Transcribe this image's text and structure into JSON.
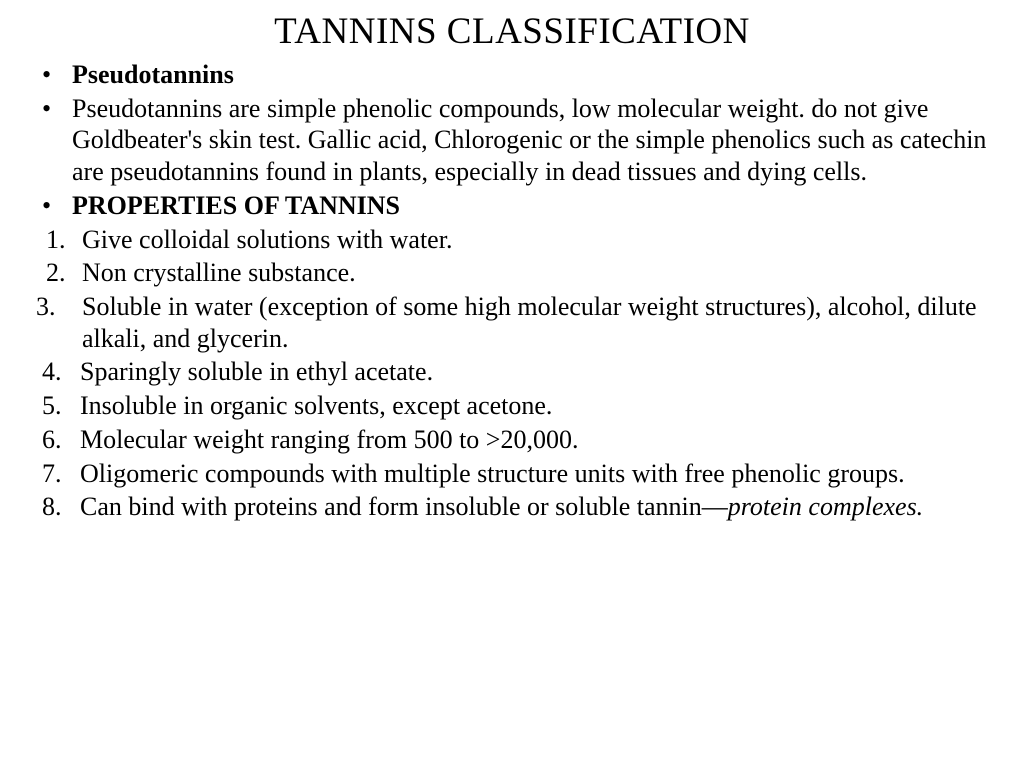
{
  "title": "TANNINS CLASSIFICATION",
  "bullets": {
    "b1": "Pseudotannins",
    "b2": "Pseudotannins are simple phenolic compounds, low molecular weight. do not give Goldbeater's skin test. Gallic acid, Chlorogenic or the simple phenolics such as catechin are pseudotannins found in plants, especially in dead tissues and dying cells.",
    "b3": "PROPERTIES OF TANNINS"
  },
  "props": {
    "p1": "Give colloidal solutions with water.",
    "p2": "Non crystalline substance.",
    "p3": "Soluble in water (exception of some high molecular weight structures), alcohol, dilute alkali, and glycerin.",
    "p4": "Sparingly soluble in ethyl acetate.",
    "p5": "Insoluble in organic solvents, except acetone.",
    "p6": "Molecular weight ranging from 500 to >20,000.",
    "p7": "Oligomeric compounds with multiple structure units  with free phenolic groups.",
    "p8a": "Can bind with proteins and form insoluble or soluble  tannin—",
    "p8b": "protein complexes."
  },
  "markers": {
    "dot": "•",
    "n1": "1.",
    "n2": "2.",
    "n3": "3.",
    "n4": "4.",
    "n5": "5.",
    "n6": "6.",
    "n7": "7.",
    "n8": "8."
  }
}
